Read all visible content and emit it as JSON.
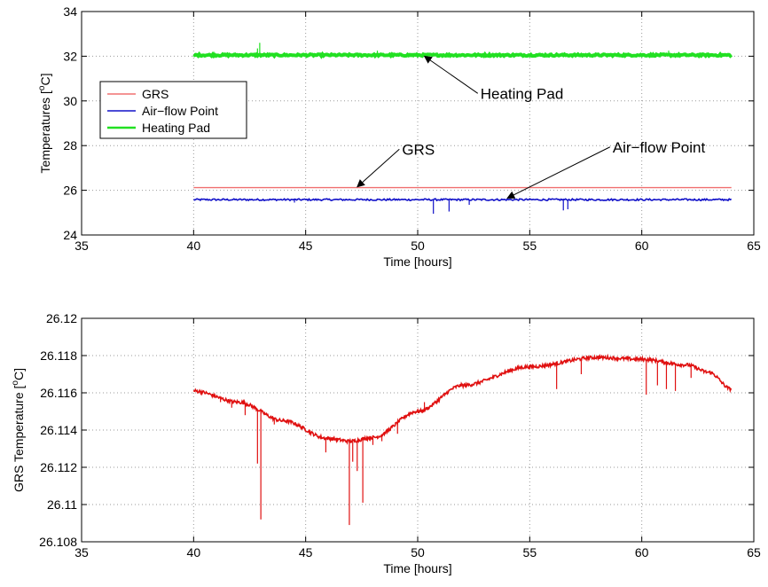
{
  "chart_data": [
    {
      "type": "line",
      "xlabel": "Time [hours]",
      "ylabel_main": "Temperatures [",
      "ylabel_sup": "o",
      "ylabel_tail": "C]",
      "xlim": [
        35,
        65
      ],
      "ylim": [
        24,
        34
      ],
      "xticks": [
        "35",
        "40",
        "45",
        "50",
        "55",
        "60",
        "65"
      ],
      "yticks": [
        "24",
        "26",
        "28",
        "30",
        "32",
        "34"
      ],
      "grid": true,
      "legend_position": "middle-left",
      "series": [
        {
          "name": "GRS",
          "color": "#f07070",
          "x_range": [
            40,
            64
          ],
          "level": 26.12,
          "spikes": []
        },
        {
          "name": "Air−flow Point",
          "color": "#1010c8",
          "x_range": [
            40,
            64
          ],
          "level": 25.58,
          "noise": 0.04,
          "spikes": [
            [
              50.7,
              24.95
            ],
            [
              51.4,
              25.05
            ],
            [
              56.5,
              25.1
            ],
            [
              56.7,
              25.15
            ],
            [
              52.3,
              25.35
            ],
            [
              44.5,
              25.45
            ]
          ]
        },
        {
          "name": "Heating Pad",
          "color": "#22e022",
          "x_range": [
            40,
            64
          ],
          "level": 32.05,
          "noise": 0.04,
          "spikes": [
            [
              42.95,
              32.6
            ],
            [
              42.85,
              32.35
            ],
            [
              48.2,
              32.25
            ],
            [
              61.2,
              32.25
            ],
            [
              40.9,
              32.2
            ]
          ]
        }
      ],
      "annotations": [
        {
          "text": "Heating Pad",
          "x": 52.8,
          "y": 30.1,
          "arrow_to": [
            50.3,
            32.0
          ]
        },
        {
          "text": "GRS",
          "x": 49.3,
          "y": 27.6,
          "arrow_to": [
            47.3,
            26.15
          ]
        },
        {
          "text": "Air−flow Point",
          "x": 58.7,
          "y": 27.7,
          "arrow_to": [
            54.0,
            25.65
          ]
        }
      ]
    },
    {
      "type": "line",
      "xlabel": "Time [hours]",
      "ylabel_main": "GRS Temperature [",
      "ylabel_sup": "o",
      "ylabel_tail": "C]",
      "xlim": [
        35,
        65
      ],
      "ylim": [
        26.108,
        26.12
      ],
      "xticks": [
        "35",
        "40",
        "45",
        "50",
        "55",
        "60",
        "65"
      ],
      "yticks": [
        "26.108",
        "26.11",
        "26.112",
        "26.114",
        "26.116",
        "26.118",
        "26.12"
      ],
      "grid": true,
      "series": [
        {
          "name": "GRS",
          "color": "#e01010",
          "x": [
            40,
            42,
            44,
            46,
            47,
            48,
            50,
            52,
            55,
            58,
            60,
            62,
            63,
            64
          ],
          "y": [
            26.1161,
            26.1155,
            26.1145,
            26.11355,
            26.1134,
            26.1136,
            26.115,
            26.1164,
            26.1174,
            26.1179,
            26.1178,
            26.1175,
            26.1171,
            26.1162
          ],
          "spikes": [
            [
              42.85,
              26.1122
            ],
            [
              43.0,
              26.1092
            ],
            [
              46.95,
              26.1089
            ],
            [
              47.55,
              26.1101
            ],
            [
              47.3,
              26.1118
            ],
            [
              47.1,
              26.1123
            ],
            [
              41.2,
              26.1155
            ],
            [
              41.7,
              26.1152
            ],
            [
              42.3,
              26.1148
            ],
            [
              43.6,
              26.1143
            ],
            [
              45.9,
              26.1128
            ],
            [
              48.0,
              26.1132
            ],
            [
              48.4,
              26.1134
            ],
            [
              49.1,
              26.1138
            ],
            [
              50.3,
              26.1155
            ],
            [
              51.2,
              26.1158
            ],
            [
              56.2,
              26.1162
            ],
            [
              57.3,
              26.117
            ],
            [
              60.2,
              26.1159
            ],
            [
              60.7,
              26.1164
            ],
            [
              61.1,
              26.1162
            ],
            [
              61.5,
              26.1161
            ],
            [
              62.2,
              26.1168
            ]
          ]
        }
      ]
    }
  ]
}
